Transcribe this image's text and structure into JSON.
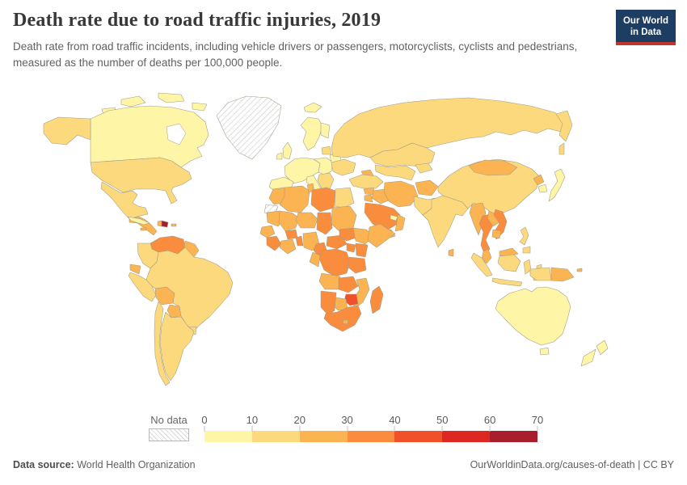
{
  "header": {
    "title": "Death rate due to road traffic injuries, 2019",
    "subtitle": "Death rate from road traffic incidents, including vehicle drivers or passengers, motorcyclists, cyclists and pedestrians, measured as the number of deaths per 100,000 people.",
    "logo_line1": "Our World",
    "logo_line2": "in Data"
  },
  "legend": {
    "no_data_label": "No data"
  },
  "footer": {
    "source_label": "Data source:",
    "source_value": "World Health Organization",
    "credit": "OurWorldinData.org/causes-of-death | CC BY"
  },
  "chart_data": {
    "type": "choropleth",
    "title": "Death rate due to road traffic injuries, 2019",
    "year": 2019,
    "unit": "deaths per 100,000 people",
    "colorscale": {
      "ticks": [
        0,
        10,
        20,
        30,
        40,
        50,
        60,
        70
      ],
      "bins": [
        "0-10",
        "10-20",
        "20-30",
        "30-40",
        "40-50",
        "50-60",
        "60-70"
      ],
      "colors": [
        "#fef5a6",
        "#fdd97d",
        "#fcb351",
        "#fa8c3e",
        "#f1512a",
        "#dd2721",
        "#a81e2d"
      ],
      "no_data_label": "No data"
    },
    "regions": {
      "greenland": {
        "label": "Greenland",
        "bin": "no-data"
      },
      "wsahara": {
        "label": "Western Sahara",
        "bin": "no-data"
      },
      "iceland": {
        "label": "Iceland",
        "bin": "0-10"
      },
      "canada": {
        "label": "Canada",
        "bin": "0-10"
      },
      "canada-arctic1": {
        "label": "Canadian Arctic Islands",
        "bin": "0-10"
      },
      "canada-arctic2": {
        "label": "Canadian Arctic Islands",
        "bin": "0-10"
      },
      "canada-arctic3": {
        "label": "Canadian Arctic Islands",
        "bin": "0-10"
      },
      "canada-arctic4": {
        "label": "Canadian Arctic Islands",
        "bin": "0-10"
      },
      "alaska": {
        "label": "Alaska (United States)",
        "bin": "10-20"
      },
      "usa": {
        "label": "United States",
        "bin": "10-20"
      },
      "mexico": {
        "label": "Mexico",
        "bin": "10-20"
      },
      "camerica": {
        "label": "Central America",
        "bin": "20-30"
      },
      "cuba": {
        "label": "Cuba",
        "bin": "0-10"
      },
      "jamaica": {
        "label": "Jamaica",
        "bin": "20-30"
      },
      "haiti": {
        "label": "Haiti",
        "bin": "20-30"
      },
      "dominican-republic": {
        "label": "Dominican Republic",
        "bin": "60-70"
      },
      "puerto-rico": {
        "label": "Puerto Rico",
        "bin": "20-30"
      },
      "venezuela": {
        "label": "Venezuela",
        "bin": "30-40"
      },
      "guyanas": {
        "label": "Guyana / Suriname",
        "bin": "20-30"
      },
      "colombia": {
        "label": "Colombia",
        "bin": "10-20"
      },
      "ecuador": {
        "label": "Ecuador",
        "bin": "20-30"
      },
      "peru": {
        "label": "Peru",
        "bin": "10-20"
      },
      "bolivia": {
        "label": "Bolivia",
        "bin": "20-30"
      },
      "paraguay": {
        "label": "Paraguay",
        "bin": "20-30"
      },
      "brazil": {
        "label": "Brazil",
        "bin": "10-20"
      },
      "uruguay": {
        "label": "Uruguay",
        "bin": "10-20"
      },
      "argentina": {
        "label": "Argentina",
        "bin": "10-20"
      },
      "chile": {
        "label": "Chile",
        "bin": "10-20"
      },
      "uk": {
        "label": "United Kingdom",
        "bin": "0-10"
      },
      "ireland": {
        "label": "Ireland",
        "bin": "0-10"
      },
      "norway-sweden": {
        "label": "Norway / Sweden",
        "bin": "0-10"
      },
      "finland": {
        "label": "Finland",
        "bin": "0-10"
      },
      "weurope": {
        "label": "Western Europe",
        "bin": "0-10"
      },
      "iberia": {
        "label": "Spain / Portugal",
        "bin": "0-10"
      },
      "italy": {
        "label": "Italy",
        "bin": "0-10"
      },
      "ceurope": {
        "label": "Central Europe",
        "bin": "0-10"
      },
      "balkans": {
        "label": "Balkans",
        "bin": "10-20"
      },
      "baltics": {
        "label": "Baltic states",
        "bin": "10-20"
      },
      "belarus": {
        "label": "Belarus",
        "bin": "0-10"
      },
      "ukraine": {
        "label": "Ukraine",
        "bin": "10-20"
      },
      "russia": {
        "label": "Russia",
        "bin": "10-20"
      },
      "kazakhstan": {
        "label": "Kazakhstan",
        "bin": "10-20"
      },
      "centralasia": {
        "label": "Uzbekistan / Turkmenistan",
        "bin": "10-20"
      },
      "kyrgyz": {
        "label": "Kyrgyzstan / Tajikistan",
        "bin": "10-20"
      },
      "caucasus": {
        "label": "Caucasus",
        "bin": "20-30"
      },
      "turkey": {
        "label": "Turkey",
        "bin": "10-20"
      },
      "syria": {
        "label": "Syria",
        "bin": "20-30"
      },
      "iraq": {
        "label": "Iraq",
        "bin": "20-30"
      },
      "iran": {
        "label": "Iran",
        "bin": "20-30"
      },
      "jordan": {
        "label": "Jordan",
        "bin": "20-30"
      },
      "saudi": {
        "label": "Saudi Arabia",
        "bin": "30-40"
      },
      "yemen": {
        "label": "Yemen",
        "bin": "20-30"
      },
      "oman": {
        "label": "Oman",
        "bin": "20-30"
      },
      "uae": {
        "label": "United Arab Emirates",
        "bin": "0-10"
      },
      "morocco": {
        "label": "Morocco",
        "bin": "20-30"
      },
      "algeria": {
        "label": "Algeria",
        "bin": "20-30"
      },
      "tunisia": {
        "label": "Tunisia",
        "bin": "20-30"
      },
      "libya": {
        "label": "Libya",
        "bin": "30-40"
      },
      "egypt": {
        "label": "Egypt",
        "bin": "10-20"
      },
      "mauritania": {
        "label": "Mauritania",
        "bin": "20-30"
      },
      "mali": {
        "label": "Mali",
        "bin": "20-30"
      },
      "niger": {
        "label": "Niger",
        "bin": "20-30"
      },
      "chad": {
        "label": "Chad",
        "bin": "30-40"
      },
      "sudan": {
        "label": "Sudan",
        "bin": "20-30"
      },
      "senegal": {
        "label": "Senegal",
        "bin": "20-30"
      },
      "guinea": {
        "label": "Guinea / Sierra Leone / Liberia",
        "bin": "30-40"
      },
      "ivorycoast": {
        "label": "Côte d'Ivoire / Ghana",
        "bin": "20-30"
      },
      "burkina": {
        "label": "Burkina Faso",
        "bin": "30-40"
      },
      "togobenin": {
        "label": "Togo / Benin",
        "bin": "30-40"
      },
      "nigeria": {
        "label": "Nigeria",
        "bin": "20-30"
      },
      "cameroon": {
        "label": "Cameroon",
        "bin": "30-40"
      },
      "car": {
        "label": "Central African Republic",
        "bin": "30-40"
      },
      "southsudan": {
        "label": "South Sudan",
        "bin": "30-40"
      },
      "ethiopia": {
        "label": "Ethiopia",
        "bin": "20-30"
      },
      "somalia": {
        "label": "Somalia",
        "bin": "20-30"
      },
      "kenya": {
        "label": "Kenya",
        "bin": "30-40"
      },
      "uganda": {
        "label": "Uganda",
        "bin": "30-40"
      },
      "drc": {
        "label": "Democratic Republic of Congo",
        "bin": "30-40"
      },
      "congogabon": {
        "label": "Congo / Gabon",
        "bin": "20-30"
      },
      "tanzania": {
        "label": "Tanzania",
        "bin": "30-40"
      },
      "angola": {
        "label": "Angola",
        "bin": "20-30"
      },
      "zambia": {
        "label": "Zambia",
        "bin": "30-40"
      },
      "mozambique": {
        "label": "Mozambique",
        "bin": "20-30"
      },
      "zimbabwe": {
        "label": "Zimbabwe",
        "bin": "40-50"
      },
      "botswana": {
        "label": "Botswana",
        "bin": "20-30"
      },
      "namibia": {
        "label": "Namibia",
        "bin": "30-40"
      },
      "southafrica": {
        "label": "South Africa",
        "bin": "30-40"
      },
      "lesotho": {
        "label": "Lesotho",
        "bin": "20-30"
      },
      "madagascar": {
        "label": "Madagascar",
        "bin": "30-40"
      },
      "afghanistan": {
        "label": "Afghanistan",
        "bin": "20-30"
      },
      "pakistan": {
        "label": "Pakistan",
        "bin": "10-20"
      },
      "india": {
        "label": "India",
        "bin": "10-20"
      },
      "srilanka": {
        "label": "Sri Lanka",
        "bin": "20-30"
      },
      "china": {
        "label": "China",
        "bin": "10-20"
      },
      "mongolia": {
        "label": "Mongolia",
        "bin": "20-30"
      },
      "nkorea": {
        "label": "North Korea",
        "bin": "20-30"
      },
      "skorea": {
        "label": "South Korea",
        "bin": "0-10"
      },
      "japan": {
        "label": "Japan",
        "bin": "0-10"
      },
      "myanmar": {
        "label": "Myanmar",
        "bin": "20-30"
      },
      "thailand": {
        "label": "Thailand",
        "bin": "30-40"
      },
      "laos": {
        "label": "Laos",
        "bin": "20-30"
      },
      "vietnam": {
        "label": "Vietnam",
        "bin": "30-40"
      },
      "cambodia": {
        "label": "Cambodia",
        "bin": "20-30"
      },
      "malaysia": {
        "label": "Malaysia (peninsular)",
        "bin": "20-30"
      },
      "malaysia-borneo": {
        "label": "Malaysia (Borneo)",
        "bin": "20-30"
      },
      "indonesia-sumatra": {
        "label": "Indonesia (Sumatra)",
        "bin": "10-20"
      },
      "indonesia-java": {
        "label": "Indonesia (Java)",
        "bin": "10-20"
      },
      "indonesia-borneo": {
        "label": "Indonesia (Kalimantan)",
        "bin": "10-20"
      },
      "indonesia-sulawesi": {
        "label": "Indonesia (Sulawesi)",
        "bin": "10-20"
      },
      "indonesia-east": {
        "label": "Indonesia (eastern islands)",
        "bin": "10-20"
      },
      "wpapua": {
        "label": "Indonesia (Papua)",
        "bin": "10-20"
      },
      "png": {
        "label": "Papua New Guinea",
        "bin": "20-30"
      },
      "png-islands": {
        "label": "Papua New Guinea islands",
        "bin": "20-30"
      },
      "philippines": {
        "label": "Philippines",
        "bin": "10-20"
      },
      "philippines-mindanao": {
        "label": "Philippines (Mindanao)",
        "bin": "10-20"
      },
      "australia": {
        "label": "Australia",
        "bin": "0-10"
      },
      "tasmania": {
        "label": "Tasmania (Australia)",
        "bin": "0-10"
      },
      "nz-north": {
        "label": "New Zealand (North Island)",
        "bin": "0-10"
      },
      "nz-south": {
        "label": "New Zealand (South Island)",
        "bin": "0-10"
      }
    }
  }
}
